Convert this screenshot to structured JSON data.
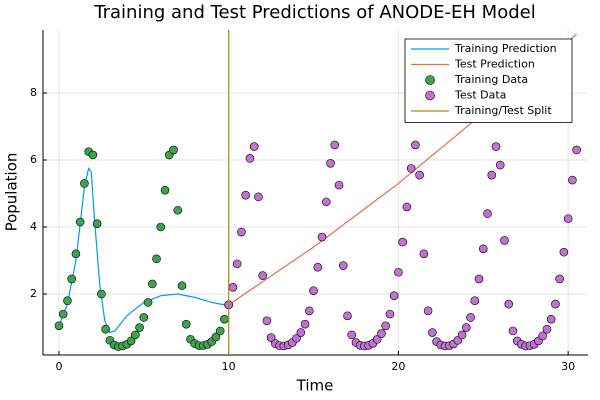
{
  "chart_data": {
    "type": "line",
    "title": "Training and Test Predictions of ANODE-EH Model",
    "xlabel": "Time",
    "ylabel": "Population",
    "xlim": [
      -0.94,
      31.17
    ],
    "ylim": [
      0.18,
      9.88
    ],
    "xticks": [
      0,
      10,
      20,
      30
    ],
    "yticks": [
      2,
      4,
      6,
      8
    ],
    "grid": true,
    "legend": "top-right",
    "series": [
      {
        "name": "Training Prediction",
        "kind": "line",
        "color": "#009af9",
        "x": [
          0,
          0.5,
          1,
          1.25,
          1.5,
          1.75,
          1.9,
          2.1,
          2.4,
          2.7,
          3.0,
          3.3,
          4,
          5,
          6,
          7,
          8,
          9,
          10
        ],
        "values": [
          1.05,
          1.7,
          3.0,
          4.1,
          5.2,
          5.75,
          5.65,
          4.2,
          2.3,
          1.2,
          0.85,
          0.9,
          1.35,
          1.75,
          1.95,
          2.0,
          1.9,
          1.75,
          1.65
        ]
      },
      {
        "name": "Test Prediction",
        "kind": "line",
        "color": "#e26f46",
        "x": [
          10,
          15,
          20,
          25,
          30,
          30.5
        ],
        "values": [
          1.68,
          3.4,
          5.3,
          7.4,
          9.55,
          9.75
        ]
      },
      {
        "name": "Training Data",
        "kind": "scatter",
        "color": "#3da44d",
        "x": [
          0,
          0.25,
          0.5,
          0.75,
          1,
          1.25,
          1.5,
          1.75,
          2,
          2.25,
          2.5,
          2.75,
          3,
          3.25,
          3.5,
          3.75,
          4,
          4.25,
          4.5,
          4.75,
          5,
          5.25,
          5.5,
          5.75,
          6,
          6.25,
          6.5,
          6.75,
          7,
          7.25,
          7.5,
          7.75,
          8,
          8.25,
          8.5,
          8.75,
          9,
          9.25,
          9.5,
          9.75,
          10
        ],
        "values": [
          1.05,
          1.4,
          1.8,
          2.45,
          3.2,
          4.15,
          5.3,
          6.25,
          6.15,
          4.1,
          2.0,
          0.95,
          0.62,
          0.48,
          0.43,
          0.45,
          0.5,
          0.6,
          0.78,
          1.0,
          1.3,
          1.75,
          2.3,
          3.05,
          4.0,
          5.1,
          6.15,
          6.3,
          4.5,
          2.25,
          1.1,
          0.65,
          0.52,
          0.46,
          0.46,
          0.5,
          0.58,
          0.72,
          0.9,
          1.25,
          1.68
        ]
      },
      {
        "name": "Test Data",
        "kind": "scatter",
        "color": "#c271d2",
        "x": [
          10,
          10.25,
          10.5,
          10.75,
          11,
          11.25,
          11.5,
          11.75,
          12,
          12.25,
          12.5,
          12.75,
          13,
          13.25,
          13.5,
          13.75,
          14,
          14.25,
          14.5,
          14.75,
          15,
          15.25,
          15.5,
          15.75,
          16,
          16.25,
          16.5,
          16.75,
          17,
          17.25,
          17.5,
          17.75,
          18,
          18.25,
          18.5,
          18.75,
          19,
          19.25,
          19.5,
          19.75,
          20,
          20.25,
          20.5,
          20.75,
          21,
          21.25,
          21.5,
          21.75,
          22,
          22.25,
          22.5,
          22.75,
          23,
          23.25,
          23.5,
          23.75,
          24,
          24.25,
          24.5,
          24.75,
          25,
          25.25,
          25.5,
          25.75,
          26,
          26.25,
          26.5,
          26.75,
          27,
          27.25,
          27.5,
          27.75,
          28,
          28.25,
          28.5,
          28.75,
          29,
          29.25,
          29.5,
          29.75,
          30,
          30.25,
          30.5
        ],
        "values": [
          1.68,
          2.2,
          2.9,
          3.85,
          4.95,
          6.05,
          6.4,
          4.9,
          2.55,
          1.2,
          0.7,
          0.52,
          0.46,
          0.45,
          0.48,
          0.55,
          0.68,
          0.85,
          1.1,
          1.5,
          2.1,
          2.8,
          3.7,
          4.75,
          5.9,
          6.45,
          5.25,
          2.85,
          1.35,
          0.78,
          0.55,
          0.47,
          0.45,
          0.47,
          0.53,
          0.65,
          0.82,
          1.05,
          1.4,
          1.95,
          2.65,
          3.55,
          4.6,
          5.75,
          6.45,
          5.55,
          3.2,
          1.5,
          0.85,
          0.58,
          0.48,
          0.45,
          0.46,
          0.51,
          0.62,
          0.78,
          1.0,
          1.3,
          1.8,
          2.45,
          3.35,
          4.4,
          5.55,
          6.4,
          5.85,
          3.6,
          1.7,
          0.9,
          0.6,
          0.5,
          0.45,
          0.46,
          0.5,
          0.6,
          0.75,
          0.95,
          1.25,
          1.7,
          2.45,
          3.25,
          4.25,
          5.4,
          6.3
        ]
      },
      {
        "name": "Training/Test Split",
        "kind": "vline",
        "color": "#ac8d18",
        "x": [
          10
        ]
      }
    ]
  }
}
